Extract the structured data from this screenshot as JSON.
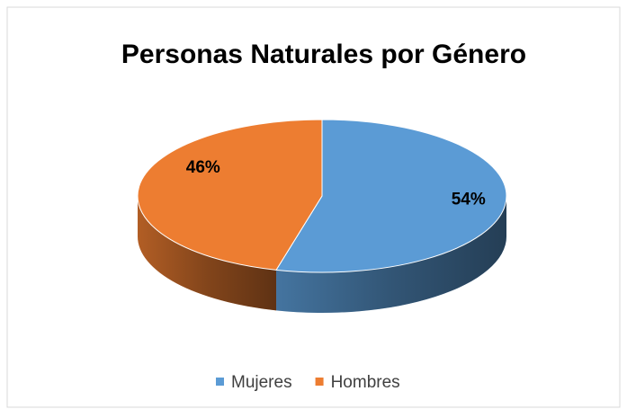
{
  "chart_data": {
    "type": "pie",
    "title": "Personas Naturales por Género",
    "categories": [
      "Mujeres",
      "Hombres"
    ],
    "values": [
      54,
      46
    ],
    "value_labels": [
      "54%",
      "46%"
    ],
    "colors": [
      "#5b9bd5",
      "#ed7d31"
    ],
    "legend": "bottom"
  }
}
